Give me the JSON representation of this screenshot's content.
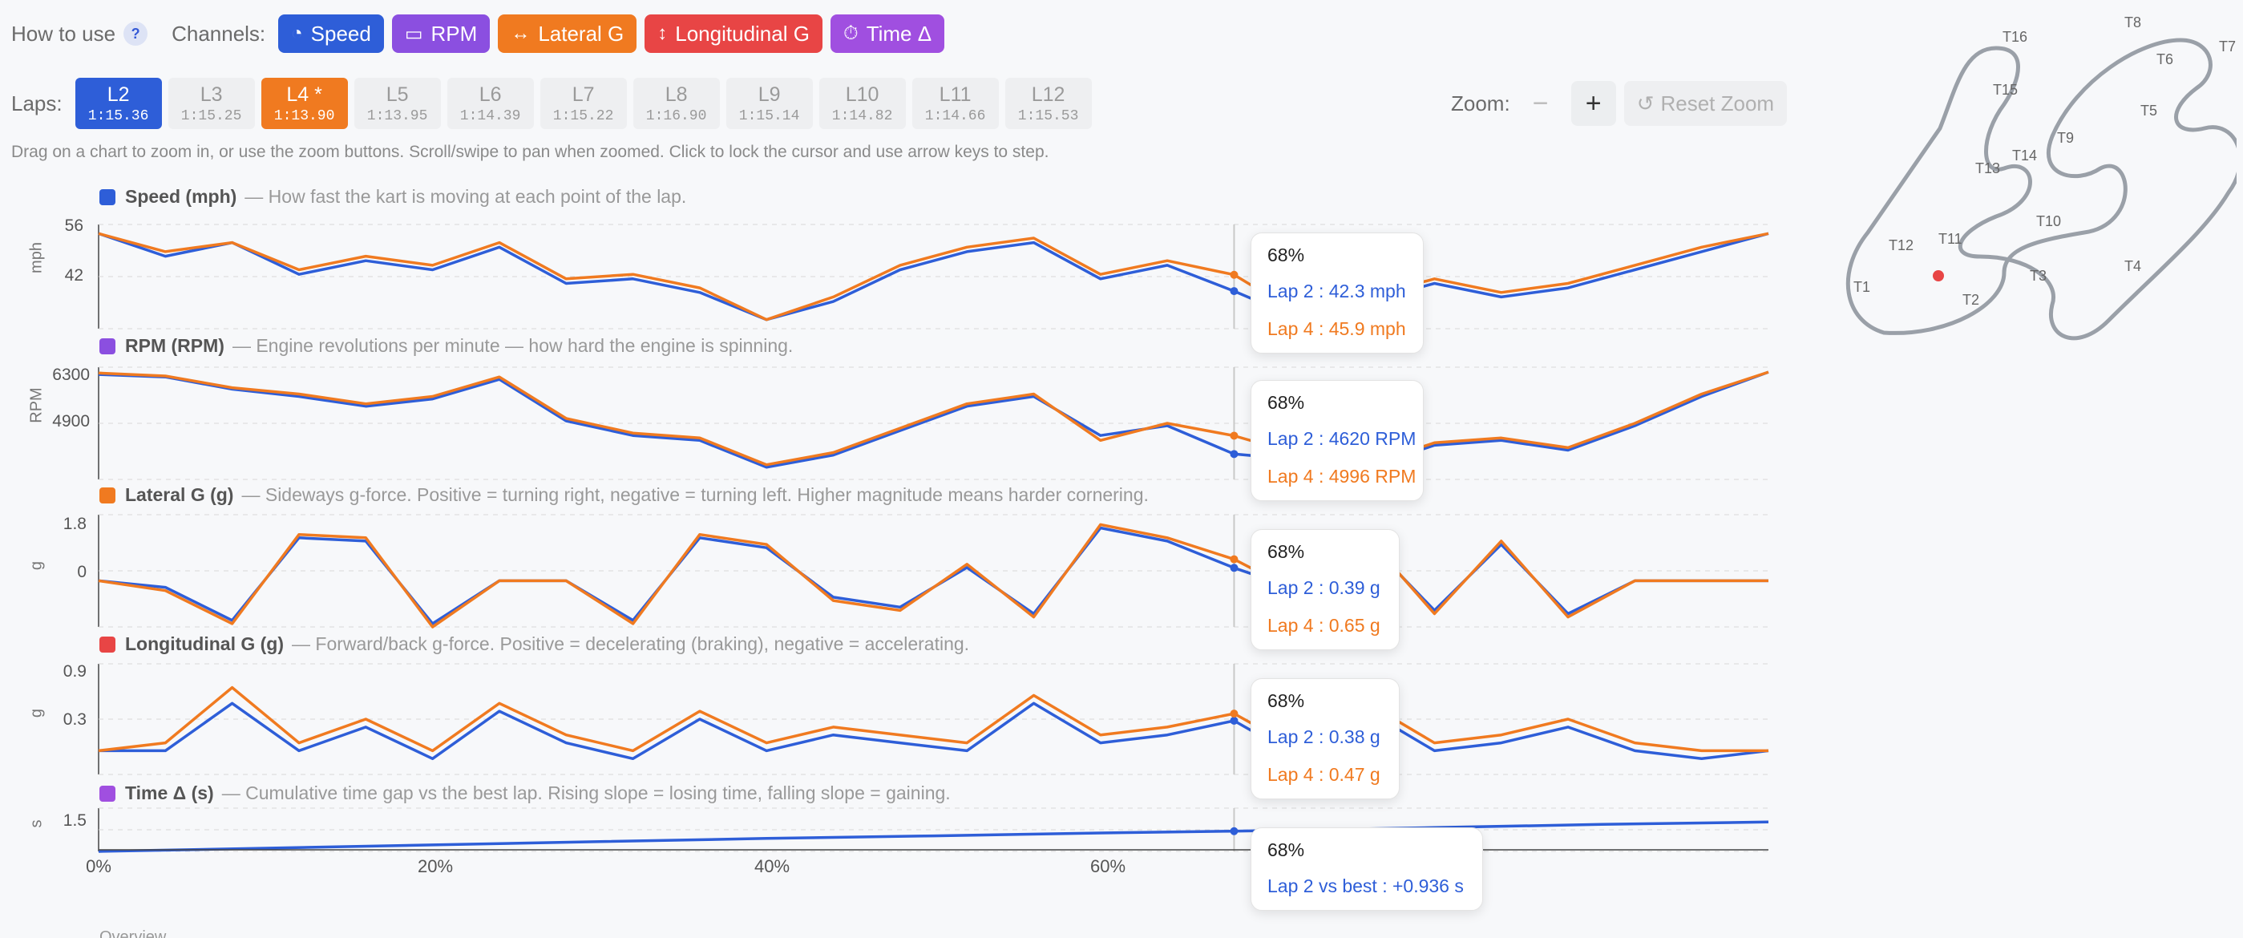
{
  "header": {
    "how_to_use": "How to use",
    "help_label": "?",
    "channels_label": "Channels:",
    "channels": [
      {
        "label": "Speed",
        "icon": "speedometer-icon",
        "glyph": "◔",
        "color": "#2e5ed8"
      },
      {
        "label": "RPM",
        "icon": "gauge-icon",
        "glyph": "▭",
        "color": "#8b4fe0"
      },
      {
        "label": "Lateral G",
        "icon": "horizontal-arrows-icon",
        "glyph": "↔",
        "color": "#f07a20"
      },
      {
        "label": "Longitudinal G",
        "icon": "vertical-arrows-icon",
        "glyph": "↕",
        "color": "#e84545"
      },
      {
        "label": "Time Δ",
        "icon": "stopwatch-icon",
        "glyph": "⏱",
        "color": "#a04fe0"
      }
    ]
  },
  "laps": {
    "label": "Laps:",
    "items": [
      {
        "name": "L2",
        "time": "1:15.36",
        "state": "blue"
      },
      {
        "name": "L3",
        "time": "1:15.25",
        "state": ""
      },
      {
        "name": "L4 *",
        "time": "1:13.90",
        "state": "orange"
      },
      {
        "name": "L5",
        "time": "1:13.95",
        "state": ""
      },
      {
        "name": "L6",
        "time": "1:14.39",
        "state": ""
      },
      {
        "name": "L7",
        "time": "1:15.22",
        "state": ""
      },
      {
        "name": "L8",
        "time": "1:16.90",
        "state": ""
      },
      {
        "name": "L9",
        "time": "1:15.14",
        "state": ""
      },
      {
        "name": "L10",
        "time": "1:14.82",
        "state": ""
      },
      {
        "name": "L11",
        "time": "1:14.66",
        "state": ""
      },
      {
        "name": "L12",
        "time": "1:15.53",
        "state": ""
      }
    ]
  },
  "zoom": {
    "label": "Zoom:",
    "minus": "−",
    "plus": "+",
    "reset_icon": "↺",
    "reset": "Reset Zoom"
  },
  "hint": "Drag on a chart to zoom in, or use the zoom buttons. Scroll/swipe to pan when zoomed. Click to lock the cursor and use arrow keys to step.",
  "colors": {
    "lap2": "#2e5ed8",
    "lap4": "#f07a20"
  },
  "channels": {
    "speed": {
      "name": "Speed (mph)",
      "desc": "— How fast the kart is moving at each point of the lap.",
      "unit": "mph",
      "ticks": [
        "56",
        "42"
      ],
      "color": "#2e5ed8"
    },
    "rpm": {
      "name": "RPM (RPM)",
      "desc": "— Engine revolutions per minute — how hard the engine is spinning.",
      "unit": "RPM",
      "ticks": [
        "6300",
        "4900"
      ],
      "color": "#8b4fe0"
    },
    "lat": {
      "name": "Lateral G (g)",
      "desc": "— Sideways g-force. Positive = turning right, negative = turning left. Higher magnitude means harder cornering.",
      "unit": "g",
      "ticks": [
        "1.8",
        "0"
      ],
      "color": "#f07a20"
    },
    "lon": {
      "name": "Longitudinal G (g)",
      "desc": "— Forward/back g-force. Positive = decelerating (braking), negative = accelerating.",
      "unit": "g",
      "ticks": [
        "0.9",
        "0.3"
      ],
      "color": "#e84545"
    },
    "td": {
      "name": "Time Δ (s)",
      "desc": "— Cumulative time gap vs the best lap. Rising slope = losing time, falling slope = gaining.",
      "unit": "s",
      "ticks": [
        "1.5"
      ],
      "color": "#a04fe0"
    }
  },
  "x_ticks": [
    "0%",
    "20%",
    "40%",
    "60%"
  ],
  "cursor": {
    "position": 0.68
  },
  "tooltips": {
    "speed": {
      "pct": "68%",
      "lap2": "Lap 2 : 42.3 mph",
      "lap4": "Lap 4 : 45.9 mph"
    },
    "rpm": {
      "pct": "68%",
      "lap2": "Lap 2 : 4620 RPM",
      "lap4": "Lap 4 : 4996 RPM"
    },
    "lat": {
      "pct": "68%",
      "lap2": "Lap 2 : 0.39 g",
      "lap4": "Lap 4 : 0.65 g"
    },
    "lon": {
      "pct": "68%",
      "lap2": "Lap 2 : 0.38 g",
      "lap4": "Lap 4 : 0.47 g"
    },
    "td": {
      "pct": "68%",
      "lap2": "Lap 2 vs best : +0.936 s"
    }
  },
  "track": {
    "turns": [
      "T1",
      "T2",
      "T3",
      "T4",
      "T5",
      "T6",
      "T7",
      "T8",
      "T9",
      "T10",
      "T11",
      "T12",
      "T13",
      "T14",
      "T15",
      "T16"
    ]
  },
  "overview": "Overview",
  "chart_data": [
    {
      "type": "line",
      "title": "Speed (mph)",
      "ylabel": "mph",
      "ylim": [
        34,
        57
      ],
      "x": [
        0,
        0.04,
        0.08,
        0.12,
        0.16,
        0.2,
        0.24,
        0.28,
        0.32,
        0.36,
        0.4,
        0.44,
        0.48,
        0.52,
        0.56,
        0.6,
        0.64,
        0.68,
        0.72,
        0.76,
        0.8,
        0.84,
        0.88,
        0.92,
        0.96,
        1.0
      ],
      "series": [
        {
          "name": "Lap 2",
          "values": [
            55,
            50,
            53,
            46,
            49,
            47,
            52,
            44,
            45,
            42,
            36,
            40,
            47,
            51,
            53,
            45,
            48,
            42.3,
            36,
            40,
            44,
            41,
            43,
            47,
            51,
            55
          ]
        },
        {
          "name": "Lap 4",
          "values": [
            55,
            51,
            53,
            47,
            50,
            48,
            53,
            45,
            46,
            43,
            36,
            41,
            48,
            52,
            54,
            46,
            49,
            45.9,
            37,
            41,
            45,
            42,
            44,
            48,
            52,
            55
          ]
        }
      ]
    },
    {
      "type": "line",
      "title": "RPM (RPM)",
      "ylabel": "RPM",
      "ylim": [
        4100,
        6400
      ],
      "x": [
        0,
        0.04,
        0.08,
        0.12,
        0.16,
        0.2,
        0.24,
        0.28,
        0.32,
        0.36,
        0.4,
        0.44,
        0.48,
        0.52,
        0.56,
        0.6,
        0.64,
        0.68,
        0.72,
        0.76,
        0.8,
        0.84,
        0.88,
        0.92,
        0.96,
        1.0
      ],
      "series": [
        {
          "name": "Lap 2",
          "values": [
            6250,
            6200,
            5950,
            5800,
            5600,
            5750,
            6150,
            5300,
            5000,
            4900,
            4350,
            4600,
            5100,
            5600,
            5800,
            5000,
            5200,
            4620,
            4500,
            4350,
            4800,
            4900,
            4700,
            5200,
            5800,
            6300
          ]
        },
        {
          "name": "Lap 4",
          "values": [
            6280,
            6220,
            5980,
            5850,
            5650,
            5800,
            6200,
            5350,
            5050,
            4950,
            4400,
            4650,
            5150,
            5650,
            5850,
            4900,
            5250,
            4996,
            4600,
            4400,
            4850,
            4950,
            4750,
            5250,
            5850,
            6300
          ]
        }
      ]
    },
    {
      "type": "line",
      "title": "Lateral G (g)",
      "ylabel": "g",
      "ylim": [
        -1.4,
        2.0
      ],
      "x": [
        0,
        0.04,
        0.08,
        0.12,
        0.16,
        0.2,
        0.24,
        0.28,
        0.32,
        0.36,
        0.4,
        0.44,
        0.48,
        0.52,
        0.56,
        0.6,
        0.64,
        0.68,
        0.72,
        0.76,
        0.8,
        0.84,
        0.88,
        0.92,
        0.96,
        1.0
      ],
      "series": [
        {
          "name": "Lap 2",
          "values": [
            0,
            -0.2,
            -1.2,
            1.3,
            1.2,
            -1.3,
            0,
            0,
            -1.2,
            1.3,
            1.0,
            -0.5,
            -0.8,
            0.4,
            -1.0,
            1.6,
            1.2,
            0.39,
            -0.3,
            1.2,
            -0.9,
            1.1,
            -1.0,
            0,
            0,
            0
          ]
        },
        {
          "name": "Lap 4",
          "values": [
            0,
            -0.3,
            -1.3,
            1.4,
            1.3,
            -1.4,
            0,
            0,
            -1.3,
            1.4,
            1.1,
            -0.6,
            -0.9,
            0.5,
            -1.1,
            1.7,
            1.3,
            0.65,
            -0.4,
            1.3,
            -1.0,
            1.2,
            -1.1,
            0,
            0,
            0
          ]
        }
      ]
    },
    {
      "type": "line",
      "title": "Longitudinal G (g)",
      "ylabel": "g",
      "ylim": [
        -0.3,
        1.1
      ],
      "x": [
        0,
        0.04,
        0.08,
        0.12,
        0.16,
        0.2,
        0.24,
        0.28,
        0.32,
        0.36,
        0.4,
        0.44,
        0.48,
        0.52,
        0.56,
        0.6,
        0.64,
        0.68,
        0.72,
        0.76,
        0.8,
        0.84,
        0.88,
        0.92,
        0.96,
        1.0
      ],
      "series": [
        {
          "name": "Lap 2",
          "values": [
            0,
            0,
            0.6,
            0,
            0.3,
            -0.1,
            0.5,
            0.1,
            -0.1,
            0.4,
            0,
            0.2,
            0.1,
            0,
            0.6,
            0.1,
            0.2,
            0.38,
            -0.1,
            0.5,
            0,
            0.1,
            0.3,
            0,
            -0.1,
            0
          ]
        },
        {
          "name": "Lap 4",
          "values": [
            0,
            0.1,
            0.8,
            0.1,
            0.4,
            0,
            0.6,
            0.2,
            0,
            0.5,
            0.1,
            0.3,
            0.2,
            0.1,
            0.7,
            0.2,
            0.3,
            0.47,
            0,
            0.6,
            0.1,
            0.2,
            0.4,
            0.1,
            0,
            0
          ]
        }
      ]
    },
    {
      "type": "line",
      "title": "Time Δ (s)",
      "ylabel": "s",
      "ylim": [
        0,
        2.0
      ],
      "x": [
        0,
        0.1,
        0.2,
        0.3,
        0.4,
        0.5,
        0.6,
        0.68,
        0.8,
        0.9,
        1.0
      ],
      "series": [
        {
          "name": "Lap 2",
          "values": [
            0,
            0.15,
            0.3,
            0.45,
            0.6,
            0.72,
            0.85,
            0.936,
            1.1,
            1.25,
            1.36
          ]
        }
      ]
    }
  ]
}
